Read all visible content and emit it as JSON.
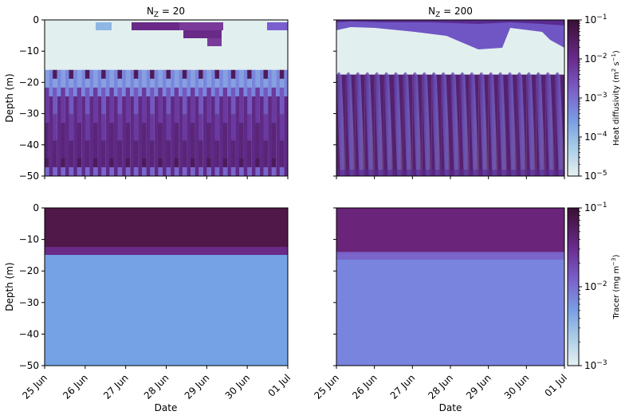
{
  "chart_data": [
    {
      "type": "heatmap",
      "panel": "top-left",
      "title_base": "N",
      "title_sub": "Z",
      "title_rest": " = 20",
      "ylabel": "Depth (m)",
      "xlabel": "",
      "ylim": [
        -50,
        0
      ],
      "xlim": [
        "2023-06-25",
        "2023-07-01"
      ],
      "y_ticks": [
        "0",
        "−10",
        "−20",
        "−30",
        "−40",
        "−50"
      ],
      "mixed_layer_depth_m": -16,
      "colorbar": "heat_diffusivity"
    },
    {
      "type": "heatmap",
      "panel": "top-right",
      "title_base": "N",
      "title_sub": "Z",
      "title_rest": " = 200",
      "ylabel": "",
      "xlabel": "",
      "ylim": [
        -50,
        0
      ],
      "mixed_layer_depth_m": -17,
      "colorbar": "heat_diffusivity"
    },
    {
      "type": "heatmap",
      "panel": "bottom-left",
      "ylabel": "Depth (m)",
      "xlabel": "Date",
      "ylim": [
        -50,
        0
      ],
      "y_ticks": [
        "0",
        "−10",
        "−20",
        "−30",
        "−40",
        "−50"
      ],
      "x_ticks": [
        "25 Jun",
        "26 Jun",
        "27 Jun",
        "28 Jun",
        "29 Jun",
        "30 Jun",
        "01 Jul"
      ],
      "interface_depth_m": -15,
      "colorbar": "tracer"
    },
    {
      "type": "heatmap",
      "panel": "bottom-right",
      "ylabel": "",
      "xlabel": "Date",
      "ylim": [
        -50,
        0
      ],
      "x_ticks": [
        "25 Jun",
        "26 Jun",
        "27 Jun",
        "28 Jun",
        "29 Jun",
        "30 Jun",
        "01 Jul"
      ],
      "interface_depth_m": -16,
      "colorbar": "tracer"
    }
  ],
  "colorbars": {
    "heat_diffusivity": {
      "label_pre": "Heat diffusivity (m",
      "label_sup1": "2",
      "label_mid": " s",
      "label_sup2": "−1",
      "label_post": ")",
      "scale": "log",
      "range": [
        1e-05,
        0.1
      ],
      "ticks": [
        {
          "base": "10",
          "exp": "−1"
        },
        {
          "base": "10",
          "exp": "−2"
        },
        {
          "base": "10",
          "exp": "−3"
        },
        {
          "base": "10",
          "exp": "−4"
        },
        {
          "base": "10",
          "exp": "−5"
        }
      ]
    },
    "tracer": {
      "label_pre": "Tracer (mg m",
      "label_sup1": "−3",
      "label_post": ")",
      "scale": "log",
      "range": [
        0.001,
        0.1
      ],
      "ticks": [
        {
          "base": "10",
          "exp": "−1"
        },
        {
          "base": "10",
          "exp": "−2"
        },
        {
          "base": "10",
          "exp": "−3"
        }
      ]
    }
  },
  "colors": {
    "low": "#e2efef",
    "mid_light": "#8fb7e6",
    "mid": "#6f8fe0",
    "high": "#6a2a87",
    "max": "#4a1642"
  }
}
